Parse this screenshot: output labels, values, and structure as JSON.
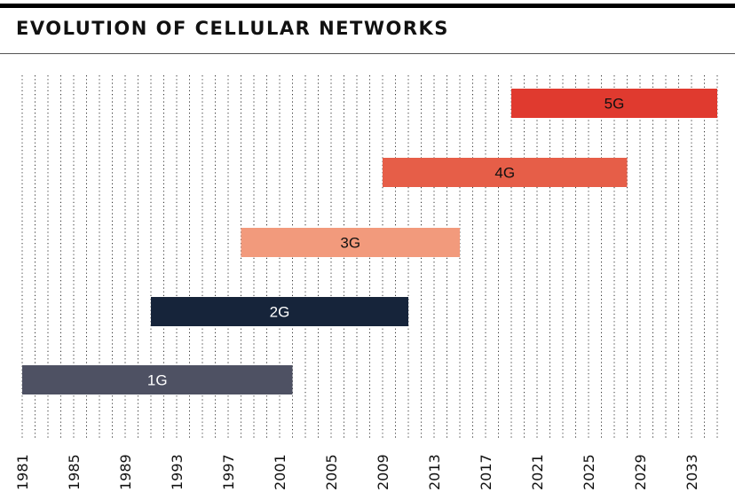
{
  "header": {
    "title": "EVOLUTION OF CELLULAR NETWORKS"
  },
  "chart_data": {
    "type": "bar",
    "orientation": "horizontal-range",
    "title": "EVOLUTION OF CELLULAR NETWORKS",
    "xlabel": "",
    "ylabel": "",
    "xlim": [
      1981,
      2035
    ],
    "xticks": [
      "1981",
      "1985",
      "1989",
      "1993",
      "1997",
      "2001",
      "2005",
      "2009",
      "2013",
      "2017",
      "2021",
      "2025",
      "2029",
      "2033"
    ],
    "grid": "vertical dotted lines every year",
    "bars": [
      {
        "label": "1G",
        "start": 1981,
        "end": 2002,
        "color": "#4e5163",
        "text_color": "#ffffff"
      },
      {
        "label": "2G",
        "start": 1991,
        "end": 2011,
        "color": "#16243a",
        "text_color": "#ffffff"
      },
      {
        "label": "3G",
        "start": 1998,
        "end": 2015,
        "color": "#f29a7c",
        "text_color": "#111111"
      },
      {
        "label": "4G",
        "start": 2009,
        "end": 2028,
        "color": "#e65e48",
        "text_color": "#111111"
      },
      {
        "label": "5G",
        "start": 2019,
        "end": 2035,
        "color": "#e03a2f",
        "text_color": "#111111"
      }
    ]
  }
}
